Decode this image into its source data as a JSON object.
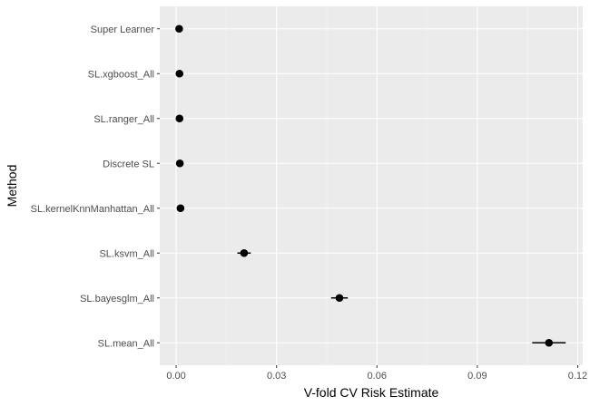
{
  "chart_data": {
    "type": "scatter",
    "title": "",
    "xlabel": "V-fold CV Risk Estimate",
    "ylabel": "Method",
    "xlim": [
      -0.0049,
      0.1215
    ],
    "xticks": [
      0.0,
      0.03,
      0.06,
      0.09,
      0.12
    ],
    "xtick_labels": [
      "0.00",
      "0.03",
      "0.06",
      "0.09",
      "0.12"
    ],
    "grid": true,
    "categories": [
      "Super Learner",
      "SL.xgboost_All",
      "SL.ranger_All",
      "Discrete SL",
      "SL.kernelKnnManhattan_All",
      "SL.ksvm_All",
      "SL.bayesglm_All",
      "SL.mean_All"
    ],
    "series": [
      {
        "estimate": [
          0.0009,
          0.001,
          0.001,
          0.0011,
          0.0013,
          0.0203,
          0.0488,
          0.1114
        ],
        "lower": [
          0.0005,
          0.0006,
          0.0006,
          0.0007,
          0.0008,
          0.0183,
          0.0463,
          0.1064
        ],
        "upper": [
          0.0013,
          0.0014,
          0.0014,
          0.0015,
          0.0018,
          0.0223,
          0.0513,
          0.1164
        ]
      }
    ],
    "colors": {
      "panel": "#ebebeb",
      "grid_major": "#ffffff",
      "grid_minor": "#f5f5f5",
      "point": "#000000"
    }
  }
}
